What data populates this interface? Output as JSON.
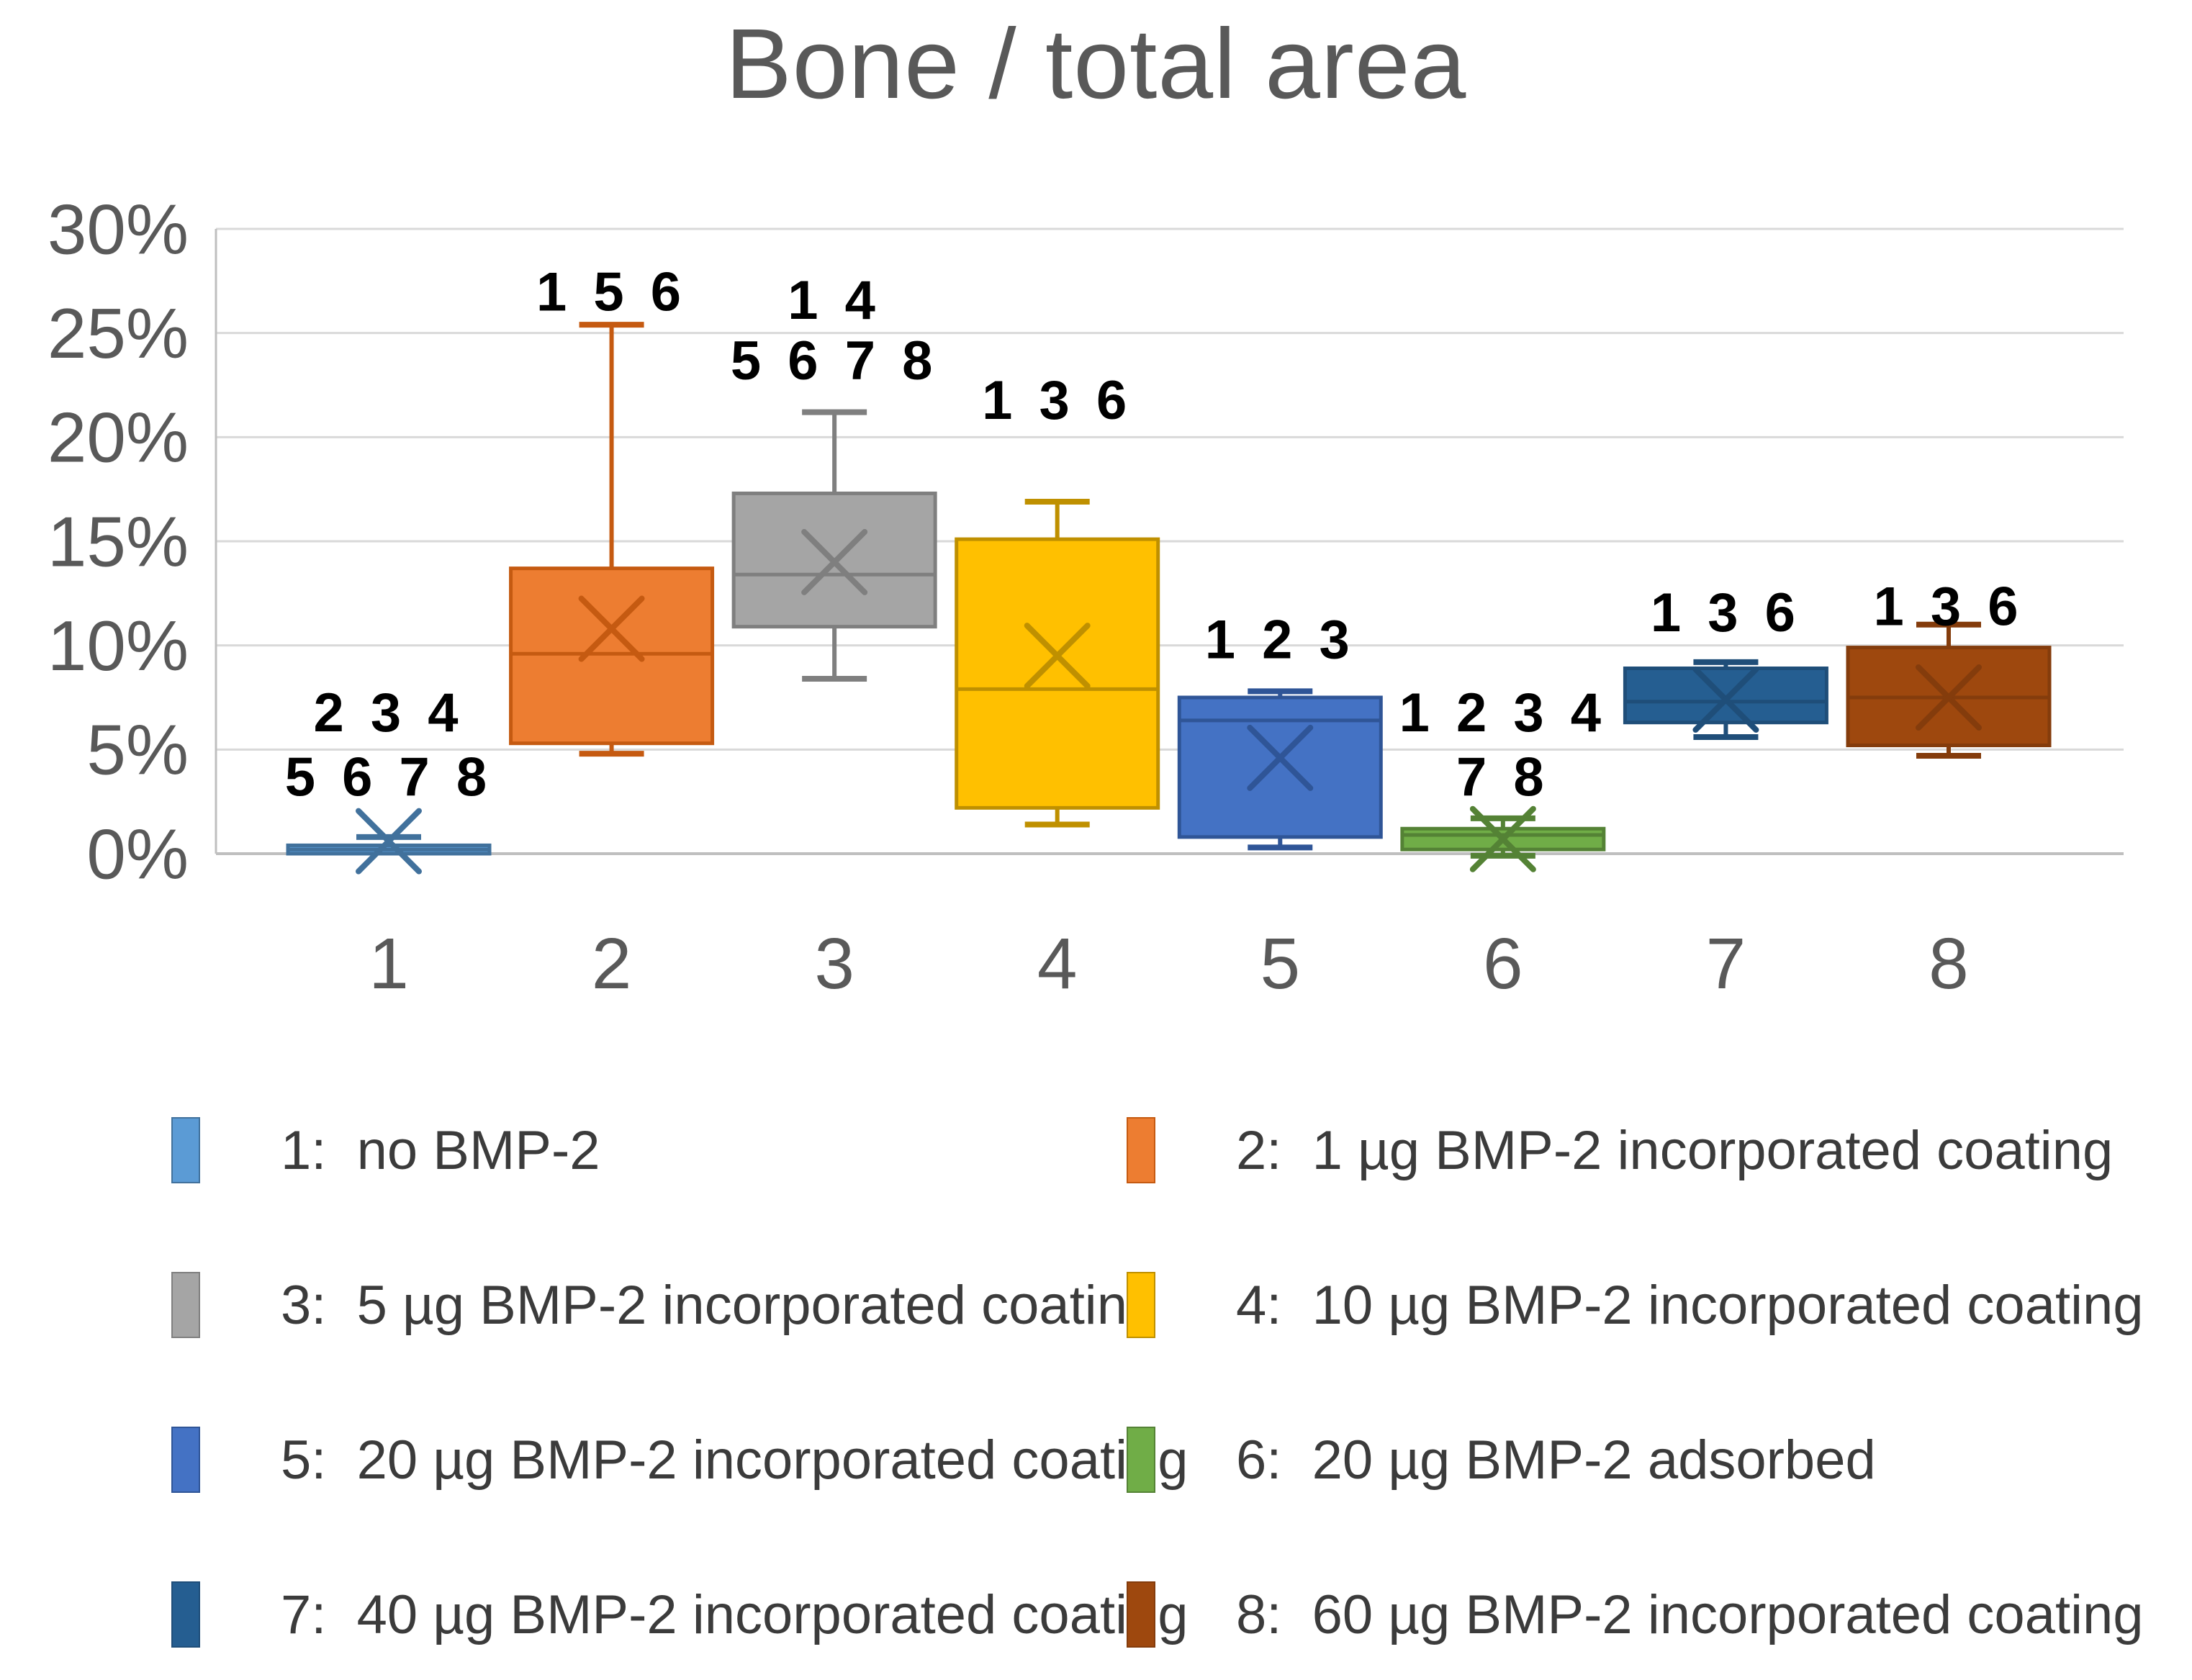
{
  "title": "Bone / total area",
  "axes": {
    "y_tick_labels": [
      "0%",
      "5%",
      "10%",
      "15%",
      "20%",
      "25%",
      "30%"
    ],
    "x_tick_labels": [
      "1",
      "2",
      "3",
      "4",
      "5",
      "6",
      "7",
      "8"
    ]
  },
  "colors": {
    "title_text": "#595959",
    "axis_text": "#595959",
    "gridline": "#D9D9D9",
    "axis_line": "#BFBFBF",
    "annotation_text": "#000000",
    "background": "#FFFFFF"
  },
  "chart_data": {
    "type": "boxplot",
    "title": "Bone / total area",
    "xlabel": "",
    "ylabel": "",
    "ylim": [
      0,
      30
    ],
    "y_unit": "%",
    "grid": "horizontal",
    "yticks": [
      {
        "value": 0,
        "label": "0%"
      },
      {
        "value": 5,
        "label": "5%"
      },
      {
        "value": 10,
        "label": "10%"
      },
      {
        "value": 15,
        "label": "15%"
      },
      {
        "value": 20,
        "label": "20%"
      },
      {
        "value": 25,
        "label": "25%"
      },
      {
        "value": 30,
        "label": "30%"
      }
    ],
    "categories": [
      "1",
      "2",
      "3",
      "4",
      "5",
      "6",
      "7",
      "8"
    ],
    "groups": [
      {
        "category": "1",
        "name": "no BMP-2",
        "fill": "#5B9BD5",
        "line": "#41719C",
        "min": 0.0,
        "q1": 0.0,
        "median": 0.2,
        "q3": 0.4,
        "max": 0.8,
        "mean": 0.6,
        "annotations": [
          {
            "text": "2 3 4",
            "y": 6.8
          },
          {
            "text": "5 6 7 8",
            "y": 3.7
          }
        ]
      },
      {
        "category": "2",
        "name": "1 µg BMP-2 incorporated coating",
        "fill": "#ED7D31",
        "line": "#C55A11",
        "min": 4.8,
        "q1": 5.3,
        "median": 9.6,
        "q3": 13.7,
        "max": 25.4,
        "mean": 10.8,
        "annotations": [
          {
            "text": "1 5 6",
            "y": 27.0
          }
        ]
      },
      {
        "category": "3",
        "name": "5 µg BMP-2 incorporated coating",
        "fill": "#A5A5A5",
        "line": "#7F7F7F",
        "min": 8.4,
        "q1": 10.9,
        "median": 13.4,
        "q3": 17.3,
        "max": 21.2,
        "mean": 14.0,
        "annotations": [
          {
            "text": "1 4",
            "y": 26.6
          },
          {
            "text": "5 6 7 8",
            "y": 23.7
          }
        ]
      },
      {
        "category": "4",
        "name": "10 µg BMP-2 incorporated coating",
        "fill": "#FFC000",
        "line": "#BF9000",
        "min": 1.4,
        "q1": 2.2,
        "median": 7.9,
        "q3": 15.1,
        "max": 16.9,
        "mean": 9.5,
        "annotations": [
          {
            "text": "1 3 6",
            "y": 21.8
          }
        ]
      },
      {
        "category": "5",
        "name": "20 µg BMP-2 incorporated coating",
        "fill": "#4472C4",
        "line": "#2F5597",
        "min": 0.3,
        "q1": 0.8,
        "median": 6.4,
        "q3": 7.5,
        "max": 7.8,
        "mean": 4.6,
        "annotations": [
          {
            "text": "1 2 3",
            "y": 10.3
          }
        ]
      },
      {
        "category": "6",
        "name": "20 µg BMP-2 adsorbed",
        "fill": "#70AD47",
        "line": "#548235",
        "min": -0.1,
        "q1": 0.2,
        "median": 0.9,
        "q3": 1.2,
        "max": 1.7,
        "mean": 0.7,
        "annotations": [
          {
            "text": "1 2 3 4",
            "y": 6.8
          },
          {
            "text": "7 8",
            "y": 3.7
          }
        ]
      },
      {
        "category": "7",
        "name": "40 µg BMP-2 incorporated coating",
        "fill": "#255E91",
        "line": "#1F4E79",
        "min": 5.6,
        "q1": 6.3,
        "median": 7.3,
        "q3": 8.9,
        "max": 9.2,
        "mean": 7.4,
        "annotations": [
          {
            "text": "1 3 6",
            "y": 11.6
          }
        ]
      },
      {
        "category": "8",
        "name": "60 µg BMP-2 incorporated coating",
        "fill": "#9E480E",
        "line": "#843C0C",
        "min": 4.7,
        "q1": 5.2,
        "median": 7.5,
        "q3": 9.9,
        "max": 11.0,
        "mean": 7.5,
        "annotations": [
          {
            "text": "1 3 6",
            "y": 11.9
          }
        ]
      }
    ],
    "legend_position": "bottom"
  },
  "legend": {
    "items": [
      {
        "label": "1:  no BMP-2",
        "color": "#5B9BD5",
        "border": "#41719C"
      },
      {
        "label": "2:  1 µg BMP-2 incorporated coating",
        "color": "#ED7D31",
        "border": "#C55A11"
      },
      {
        "label": "3:  5 µg BMP-2 incorporated coating",
        "color": "#A5A5A5",
        "border": "#7F7F7F"
      },
      {
        "label": "4:  10 µg BMP-2 incorporated coating",
        "color": "#FFC000",
        "border": "#BF9000"
      },
      {
        "label": "5:  20 µg BMP-2 incorporated coating",
        "color": "#4472C4",
        "border": "#2F5597"
      },
      {
        "label": "6:  20 µg BMP-2 adsorbed",
        "color": "#70AD47",
        "border": "#548235"
      },
      {
        "label": "7:  40 µg BMP-2 incorporated coating",
        "color": "#255E91",
        "border": "#1F4E79"
      },
      {
        "label": "8:  60 µg BMP-2 incorporated coating",
        "color": "#9E480E",
        "border": "#843C0C"
      }
    ]
  }
}
